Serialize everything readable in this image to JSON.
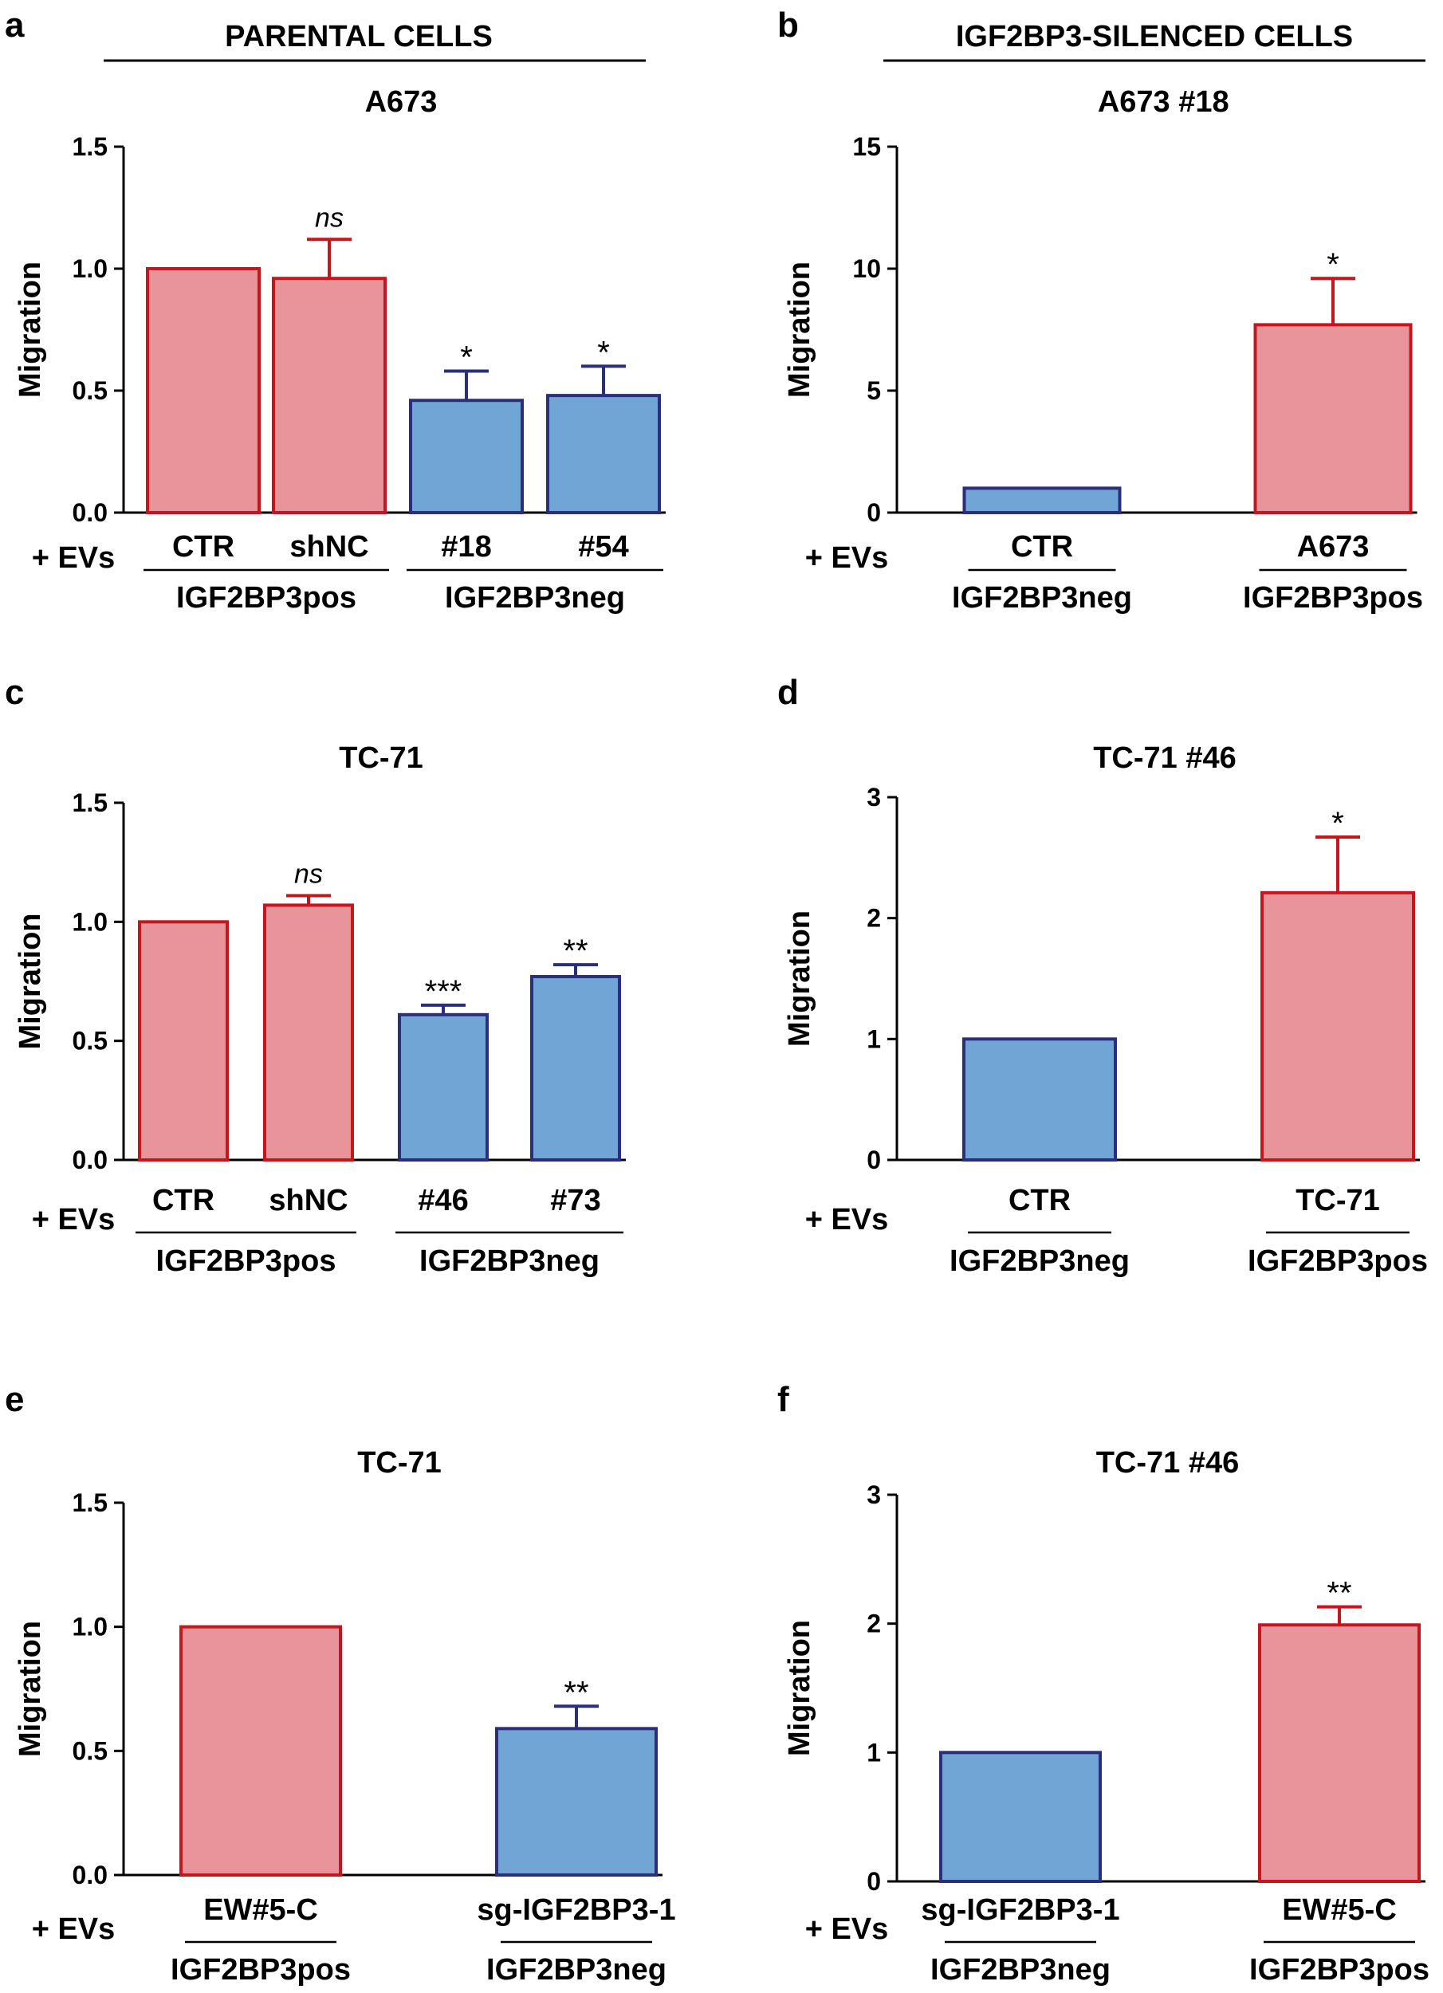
{
  "colors": {
    "pos_fill": "#e8949a",
    "pos_stroke": "#c4161c",
    "neg_fill": "#70a5d6",
    "neg_stroke": "#2b2e7a",
    "axis": "#000000"
  },
  "headers": {
    "parental": "PARENTAL CELLS",
    "silenced": "IGF2BP3-SILENCED CELLS"
  },
  "ev_label": "+ EVs",
  "chart_data": [
    {
      "panel": "a",
      "type": "bar",
      "title": "A673",
      "ylabel": "Migration",
      "ylim": [
        0,
        1.5
      ],
      "yticks": [
        "0.0",
        "0.5",
        "1.0",
        "1.5"
      ],
      "categories": [
        "CTR",
        "shNC",
        "#18",
        "#54"
      ],
      "values": [
        1.0,
        0.96,
        0.46,
        0.48
      ],
      "errors": [
        0,
        0.16,
        0.12,
        0.12
      ],
      "groups": [
        "pos",
        "pos",
        "neg",
        "neg"
      ],
      "annotations": [
        "",
        "ns",
        "*",
        "*"
      ],
      "group_labels": [
        {
          "text": "IGF2BP3pos",
          "from": 0,
          "to": 1
        },
        {
          "text": "IGF2BP3neg",
          "from": 2,
          "to": 3
        }
      ]
    },
    {
      "panel": "b",
      "type": "bar",
      "title": "A673 #18",
      "ylabel": "Migration",
      "ylim": [
        0,
        15
      ],
      "yticks": [
        "0",
        "5",
        "10",
        "15"
      ],
      "categories": [
        "CTR",
        "A673"
      ],
      "values": [
        1.0,
        7.7
      ],
      "errors": [
        0,
        1.9
      ],
      "groups": [
        "neg",
        "pos"
      ],
      "annotations": [
        "",
        "*"
      ],
      "group_labels": [
        {
          "text": "IGF2BP3neg",
          "from": 0,
          "to": 0
        },
        {
          "text": "IGF2BP3pos",
          "from": 1,
          "to": 1
        }
      ]
    },
    {
      "panel": "c",
      "type": "bar",
      "title": "TC-71",
      "ylabel": "Migration",
      "ylim": [
        0,
        1.5
      ],
      "yticks": [
        "0.0",
        "0.5",
        "1.0",
        "1.5"
      ],
      "categories": [
        "CTR",
        "shNC",
        "#46",
        "#73"
      ],
      "values": [
        1.0,
        1.07,
        0.61,
        0.77
      ],
      "errors": [
        0,
        0.04,
        0.04,
        0.05
      ],
      "groups": [
        "pos",
        "pos",
        "neg",
        "neg"
      ],
      "annotations": [
        "",
        "ns",
        "***",
        "**"
      ],
      "group_labels": [
        {
          "text": "IGF2BP3pos",
          "from": 0,
          "to": 1
        },
        {
          "text": "IGF2BP3neg",
          "from": 2,
          "to": 3
        }
      ]
    },
    {
      "panel": "d",
      "type": "bar",
      "title": "TC-71 #46",
      "ylabel": "Migration",
      "ylim": [
        0,
        3
      ],
      "yticks": [
        "0",
        "1",
        "2",
        "3"
      ],
      "categories": [
        "CTR",
        "TC-71"
      ],
      "values": [
        1.0,
        2.21
      ],
      "errors": [
        0,
        0.46
      ],
      "groups": [
        "neg",
        "pos"
      ],
      "annotations": [
        "",
        "*"
      ],
      "group_labels": [
        {
          "text": "IGF2BP3neg",
          "from": 0,
          "to": 0
        },
        {
          "text": "IGF2BP3pos",
          "from": 1,
          "to": 1
        }
      ]
    },
    {
      "panel": "e",
      "type": "bar",
      "title": "TC-71",
      "ylabel": "Migration",
      "ylim": [
        0,
        1.5
      ],
      "yticks": [
        "0.0",
        "0.5",
        "1.0",
        "1.5"
      ],
      "categories": [
        "EW#5-C",
        "sg-IGF2BP3-1"
      ],
      "values": [
        1.0,
        0.59
      ],
      "errors": [
        0,
        0.09
      ],
      "groups": [
        "pos",
        "neg"
      ],
      "annotations": [
        "",
        "**"
      ],
      "group_labels": [
        {
          "text": "IGF2BP3pos",
          "from": 0,
          "to": 0
        },
        {
          "text": "IGF2BP3neg",
          "from": 1,
          "to": 1
        }
      ]
    },
    {
      "panel": "f",
      "type": "bar",
      "title": "TC-71 #46",
      "ylabel": "Migration",
      "ylim": [
        0,
        3
      ],
      "yticks": [
        "0",
        "1",
        "2",
        "3"
      ],
      "categories": [
        "sg-IGF2BP3-1",
        "EW#5-C"
      ],
      "values": [
        1.0,
        1.99
      ],
      "errors": [
        0,
        0.14
      ],
      "groups": [
        "neg",
        "pos"
      ],
      "annotations": [
        "",
        "**"
      ],
      "group_labels": [
        {
          "text": "IGF2BP3neg",
          "from": 0,
          "to": 0
        },
        {
          "text": "IGF2BP3pos",
          "from": 1,
          "to": 1
        }
      ]
    }
  ]
}
